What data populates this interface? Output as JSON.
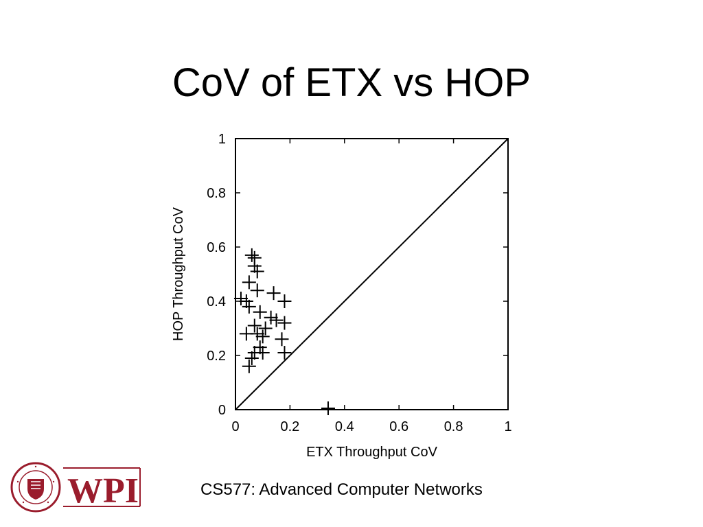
{
  "slide": {
    "title": "CoV of ETX vs HOP",
    "footer": "CS577: Advanced Computer Networks",
    "logo": {
      "text": "WPI",
      "seal_text": "WORCESTER POLYTECHNIC INSTITUTE",
      "seal_year": "1865",
      "color": "#9a1c2c"
    }
  },
  "chart_data": {
    "type": "scatter",
    "xlabel": "ETX Throughput CoV",
    "ylabel": "HOP Throughput CoV",
    "xlim": [
      0,
      1
    ],
    "ylim": [
      0,
      1
    ],
    "xticks": [
      "0",
      "0.2",
      "0.4",
      "0.6",
      "0.8",
      "1"
    ],
    "yticks": [
      "0",
      "0.2",
      "0.4",
      "0.6",
      "0.8",
      "1"
    ],
    "marker": "plus",
    "reference_line": "y = x",
    "grid": false,
    "points": [
      [
        0.06,
        0.57
      ],
      [
        0.07,
        0.56
      ],
      [
        0.07,
        0.53
      ],
      [
        0.08,
        0.51
      ],
      [
        0.05,
        0.47
      ],
      [
        0.08,
        0.44
      ],
      [
        0.02,
        0.41
      ],
      [
        0.04,
        0.4
      ],
      [
        0.05,
        0.38
      ],
      [
        0.14,
        0.43
      ],
      [
        0.18,
        0.4
      ],
      [
        0.09,
        0.36
      ],
      [
        0.13,
        0.34
      ],
      [
        0.15,
        0.33
      ],
      [
        0.18,
        0.32
      ],
      [
        0.07,
        0.31
      ],
      [
        0.11,
        0.3
      ],
      [
        0.04,
        0.28
      ],
      [
        0.08,
        0.28
      ],
      [
        0.1,
        0.27
      ],
      [
        0.17,
        0.26
      ],
      [
        0.09,
        0.23
      ],
      [
        0.07,
        0.21
      ],
      [
        0.1,
        0.21
      ],
      [
        0.18,
        0.21
      ],
      [
        0.06,
        0.19
      ],
      [
        0.05,
        0.16
      ],
      [
        0.34,
        0.005
      ]
    ]
  }
}
